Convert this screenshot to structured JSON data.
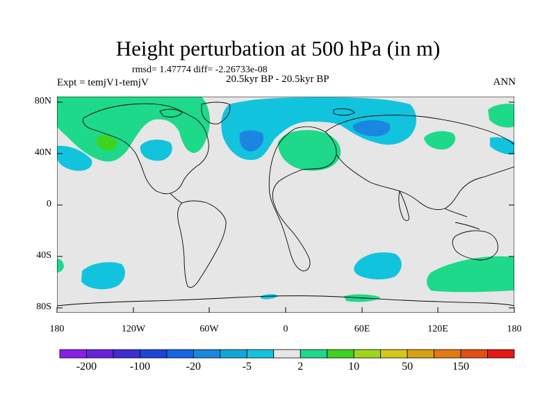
{
  "title": "Height perturbation at 500 hPa (in m)",
  "stats": "rmsd= 1.47774 diff= -2.26733e-08",
  "period": "20.5kyr BP - 20.5kyr BP",
  "experiment": "Expt = temjV1-temjV",
  "season": "ANN",
  "lat_labels": [
    "80N",
    "40N",
    "0",
    "40S",
    "80S"
  ],
  "lon_labels": [
    "180",
    "120W",
    "60W",
    "0",
    "60E",
    "120E",
    "180"
  ],
  "colorbar": {
    "colors": [
      "#8a1ee6",
      "#6a22d8",
      "#3c2fd2",
      "#1b46d8",
      "#1565e0",
      "#1a86e0",
      "#11a6d8",
      "#12c3dd",
      "#e6e6e6",
      "#1ed98a",
      "#3fd21e",
      "#9ed61c",
      "#d4c71a",
      "#d8a015",
      "#e07a14",
      "#e24e14",
      "#e41a14"
    ],
    "labels": [
      "-200",
      "-100",
      "-20",
      "-5",
      "2",
      "10",
      "50",
      "150"
    ]
  },
  "fill_colors": {
    "land_ocean_background": "#e6e6e6",
    "negative_light": "#12c3dd",
    "negative_mid": "#1a86e0",
    "positive_light": "#1ed98a",
    "positive_mid": "#3fd21e",
    "coastline": "#000000"
  }
}
